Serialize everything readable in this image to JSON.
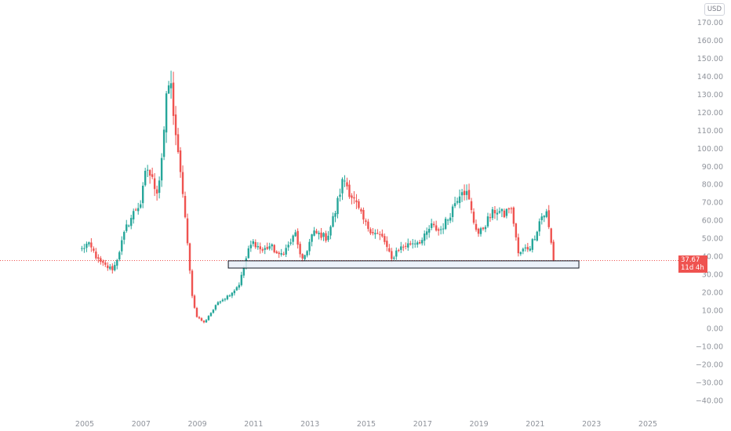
{
  "currency_button": "USD",
  "last_price": {
    "value": "37.67",
    "countdown": "11d 4h",
    "color": "#ef5350"
  },
  "colors": {
    "up": "#26a69a",
    "down": "#ef5350",
    "zone_fill": "#e8eef8",
    "zone_stroke": "#131722",
    "price_line": "#ef5350"
  },
  "chart_data": {
    "type": "candlestick",
    "title": "",
    "xlabel": "",
    "ylabel": "",
    "ylim": [
      -45,
      178
    ],
    "xlim": [
      2004.7,
      2025.8
    ],
    "grid": false,
    "legend": "none",
    "y_ticks": [
      "170.00",
      "160.00",
      "150.00",
      "140.00",
      "130.00",
      "120.00",
      "110.00",
      "100.00",
      "90.00",
      "80.00",
      "70.00",
      "60.00",
      "50.00",
      "40.00",
      "30.00",
      "20.00",
      "10.00",
      "0.00",
      "−10.00",
      "−20.00",
      "−30.00",
      "−40.00"
    ],
    "y_tick_values": [
      170,
      160,
      150,
      140,
      130,
      120,
      110,
      100,
      90,
      80,
      70,
      60,
      50,
      40,
      30,
      20,
      10,
      0,
      -10,
      -20,
      -30,
      -40
    ],
    "x_ticks": [
      "2005",
      "2007",
      "2009",
      "2011",
      "2013",
      "2015",
      "2017",
      "2019",
      "2021",
      "2023",
      "2025"
    ],
    "x_tick_values": [
      2005,
      2007,
      2009,
      2011,
      2013,
      2015,
      2017,
      2019,
      2021,
      2023,
      2025
    ],
    "support_zone": {
      "x_start": 2010.1,
      "x_end": 2022.55,
      "y_low": 33.5,
      "y_high": 37.5
    },
    "price_line": 37.67,
    "price_path": [
      [
        2004.9,
        44
      ],
      [
        2005.1,
        47
      ],
      [
        2005.3,
        43
      ],
      [
        2005.5,
        37
      ],
      [
        2005.8,
        34
      ],
      [
        2006.0,
        33
      ],
      [
        2006.1,
        36
      ],
      [
        2006.3,
        47
      ],
      [
        2006.5,
        57
      ],
      [
        2006.8,
        66
      ],
      [
        2007.0,
        70
      ],
      [
        2007.2,
        90
      ],
      [
        2007.4,
        82
      ],
      [
        2007.6,
        76
      ],
      [
        2007.75,
        98
      ],
      [
        2007.95,
        135
      ],
      [
        2008.05,
        136
      ],
      [
        2008.2,
        113
      ],
      [
        2008.35,
        90
      ],
      [
        2008.5,
        74
      ],
      [
        2008.65,
        46
      ],
      [
        2008.8,
        20
      ],
      [
        2008.95,
        7
      ],
      [
        2009.1,
        5
      ],
      [
        2009.25,
        3
      ],
      [
        2009.4,
        7
      ],
      [
        2009.55,
        10
      ],
      [
        2009.75,
        15
      ],
      [
        2010.0,
        17
      ],
      [
        2010.3,
        21
      ],
      [
        2010.5,
        25
      ],
      [
        2010.7,
        37
      ],
      [
        2010.85,
        45
      ],
      [
        2011.0,
        48
      ],
      [
        2011.3,
        43
      ],
      [
        2011.6,
        46
      ],
      [
        2011.9,
        40
      ],
      [
        2012.2,
        45
      ],
      [
        2012.5,
        53
      ],
      [
        2012.7,
        36
      ],
      [
        2012.9,
        44
      ],
      [
        2013.1,
        53
      ],
      [
        2013.4,
        52
      ],
      [
        2013.6,
        50
      ],
      [
        2013.9,
        65
      ],
      [
        2014.1,
        78
      ],
      [
        2014.2,
        84
      ],
      [
        2014.4,
        76
      ],
      [
        2014.6,
        70
      ],
      [
        2014.8,
        63
      ],
      [
        2015.0,
        57
      ],
      [
        2015.3,
        53
      ],
      [
        2015.6,
        50
      ],
      [
        2015.9,
        38
      ],
      [
        2016.1,
        44
      ],
      [
        2016.4,
        46
      ],
      [
        2016.7,
        48
      ],
      [
        2017.0,
        49
      ],
      [
        2017.3,
        57
      ],
      [
        2017.6,
        54
      ],
      [
        2017.9,
        61
      ],
      [
        2018.2,
        72
      ],
      [
        2018.4,
        78
      ],
      [
        2018.6,
        74
      ],
      [
        2018.8,
        60
      ],
      [
        2019.0,
        52
      ],
      [
        2019.3,
        60
      ],
      [
        2019.6,
        66
      ],
      [
        2019.9,
        63
      ],
      [
        2020.1,
        68
      ],
      [
        2020.25,
        58
      ],
      [
        2020.4,
        41
      ],
      [
        2020.6,
        44
      ],
      [
        2020.8,
        45
      ],
      [
        2021.0,
        52
      ],
      [
        2021.2,
        62
      ],
      [
        2021.4,
        64
      ],
      [
        2021.55,
        49
      ],
      [
        2021.65,
        38.5
      ]
    ]
  }
}
